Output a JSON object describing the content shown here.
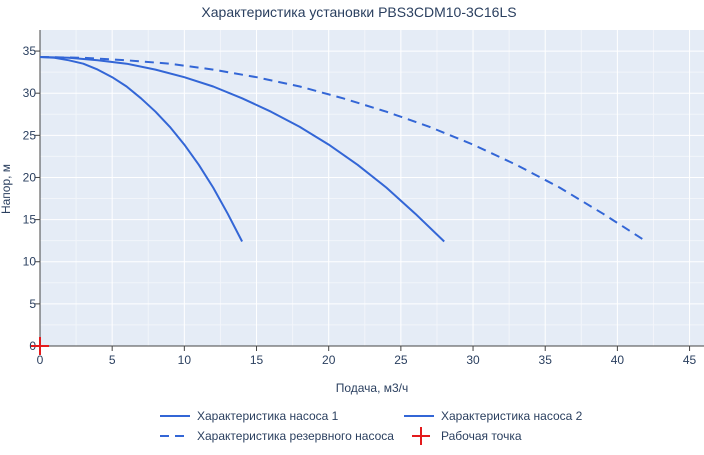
{
  "chart_data": {
    "type": "line",
    "title": "Характеристика установки PBS3CDM10-3C16LS",
    "xlabel": "Подача, м3/ч",
    "ylabel": "Напор, м",
    "xlim": [
      0,
      46
    ],
    "ylim": [
      0,
      37.5
    ],
    "x_ticks": [
      0,
      5,
      10,
      15,
      20,
      25,
      30,
      35,
      40,
      45
    ],
    "y_ticks": [
      0,
      5,
      10,
      15,
      20,
      25,
      30,
      35
    ],
    "grid": true,
    "plot_background": "#e5ecf6",
    "legend_position": "bottom",
    "series": [
      {
        "name": "Характеристика насоса 1",
        "color": "#3366d6",
        "dash": "solid",
        "x": [
          0,
          1,
          2,
          3,
          4,
          5,
          6,
          7,
          8,
          9,
          10,
          11,
          12,
          13,
          14
        ],
        "y": [
          34.3,
          34.2,
          33.9,
          33.5,
          32.8,
          31.9,
          30.8,
          29.4,
          27.8,
          26.0,
          23.9,
          21.5,
          18.8,
          15.7,
          12.4
        ]
      },
      {
        "name": "Характеристика насоса 2",
        "color": "#3366d6",
        "dash": "solid",
        "x": [
          0,
          2,
          4,
          6,
          8,
          10,
          12,
          14,
          16,
          18,
          20,
          22,
          24,
          26,
          28
        ],
        "y": [
          34.3,
          34.2,
          33.9,
          33.5,
          32.8,
          31.9,
          30.8,
          29.4,
          27.8,
          26.0,
          23.9,
          21.5,
          18.8,
          15.7,
          12.4
        ]
      },
      {
        "name": "Характеристика резервного насоса",
        "color": "#3366d6",
        "dash": "dash",
        "x": [
          0,
          3,
          6,
          9,
          12,
          15,
          18,
          21,
          24,
          27,
          30,
          33,
          36,
          39,
          42
        ],
        "y": [
          34.3,
          34.2,
          33.9,
          33.5,
          32.8,
          31.9,
          30.8,
          29.4,
          27.8,
          26.0,
          23.9,
          21.5,
          18.8,
          15.7,
          12.4
        ]
      },
      {
        "name": "Рабочая точка",
        "color": "#e31a1c",
        "marker": "cross",
        "x": [
          0
        ],
        "y": [
          0
        ]
      }
    ]
  }
}
